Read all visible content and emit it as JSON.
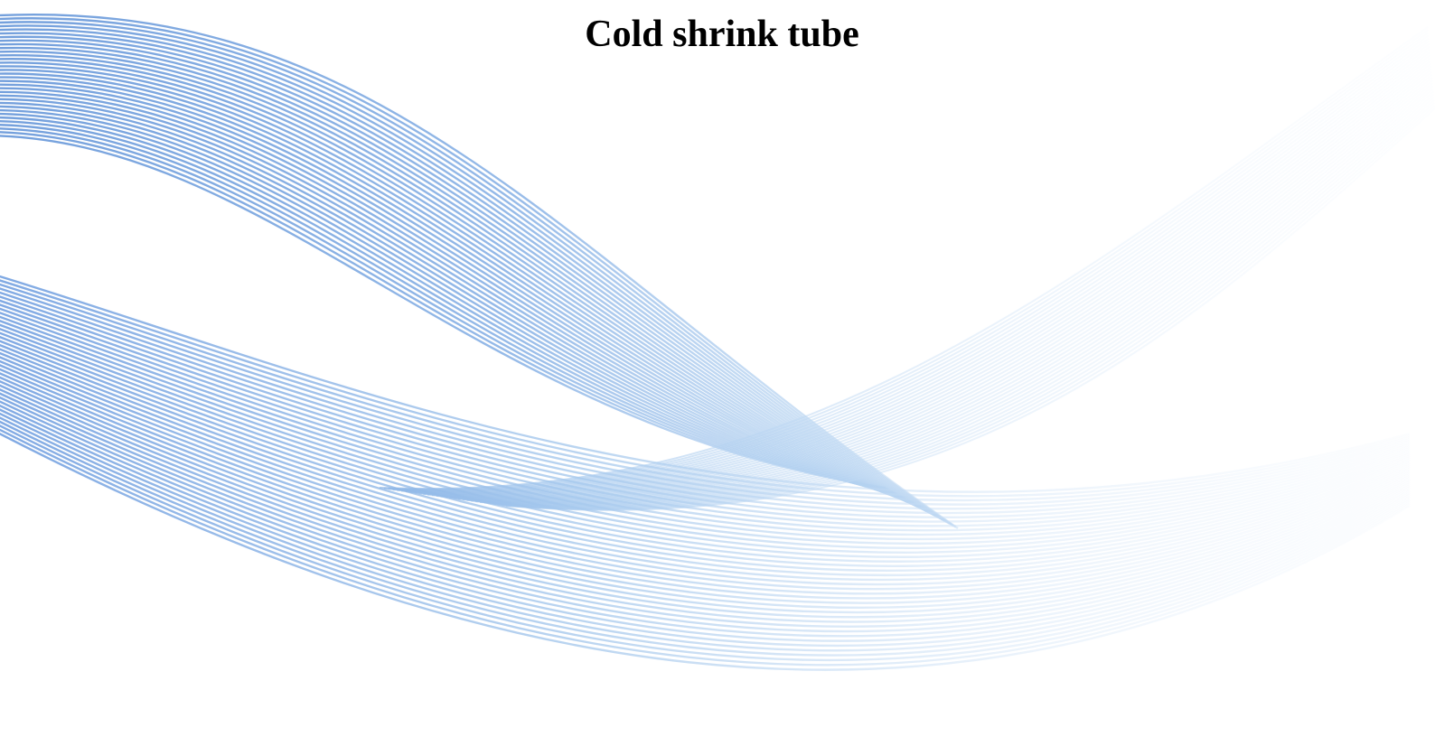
{
  "slide": {
    "title": "Cold shrink tube"
  },
  "background": {
    "color": "#ffffff",
    "wave_colors": {
      "strong": "#5b8fd6",
      "mid": "#9cc2ea",
      "faint": "#e3eef9"
    }
  }
}
